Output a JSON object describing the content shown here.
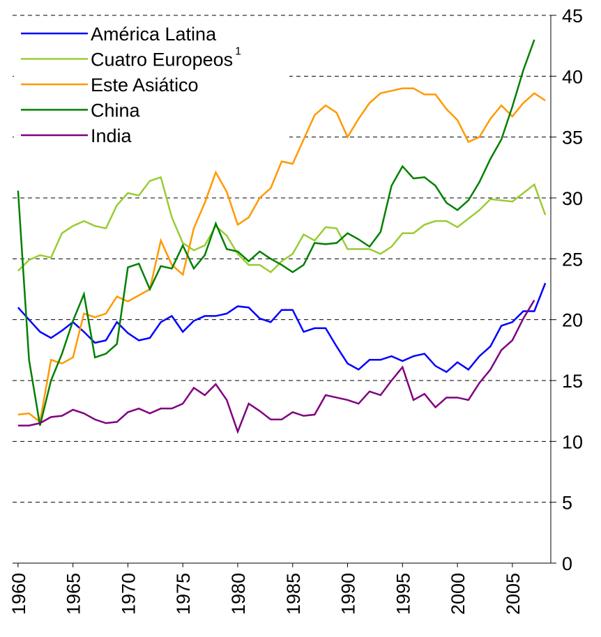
{
  "chart_data": {
    "type": "line",
    "x": [
      1960,
      1961,
      1962,
      1963,
      1964,
      1965,
      1966,
      1967,
      1968,
      1969,
      1970,
      1971,
      1972,
      1973,
      1974,
      1975,
      1976,
      1977,
      1978,
      1979,
      1980,
      1981,
      1982,
      1983,
      1984,
      1985,
      1986,
      1987,
      1988,
      1989,
      1990,
      1991,
      1992,
      1993,
      1994,
      1995,
      1996,
      1997,
      1998,
      1999,
      2000,
      2001,
      2002,
      2003,
      2004,
      2005,
      2006,
      2007,
      2008
    ],
    "series": [
      {
        "name": "América Latina",
        "color": "#0000ff",
        "values": [
          21.0,
          20.0,
          19.0,
          18.5,
          19.1,
          19.8,
          19.0,
          18.1,
          18.3,
          19.8,
          18.9,
          18.3,
          18.5,
          19.8,
          20.3,
          19.0,
          19.9,
          20.3,
          20.3,
          20.5,
          21.1,
          21.0,
          20.1,
          19.8,
          20.8,
          20.8,
          19.0,
          19.3,
          19.3,
          17.8,
          16.4,
          15.9,
          16.7,
          16.7,
          17.0,
          16.6,
          17.0,
          17.2,
          16.2,
          15.7,
          16.5,
          15.9,
          17.0,
          17.8,
          19.5,
          19.8,
          20.7,
          20.7,
          23.0
        ]
      },
      {
        "name": "Cuatro Europeos",
        "footnote_marker": "1",
        "color": "#99cc33",
        "values": [
          24.0,
          24.9,
          25.3,
          25.1,
          27.1,
          27.7,
          28.1,
          27.7,
          27.5,
          29.4,
          30.4,
          30.2,
          31.4,
          31.7,
          28.4,
          26.3,
          25.7,
          26.1,
          27.7,
          26.9,
          25.4,
          24.5,
          24.5,
          23.9,
          24.8,
          25.4,
          27.0,
          26.5,
          27.6,
          27.5,
          25.8,
          25.8,
          25.8,
          25.4,
          26.0,
          27.1,
          27.1,
          27.8,
          28.1,
          28.1,
          27.6,
          28.3,
          29.0,
          29.9,
          29.8,
          29.7,
          30.4,
          31.1,
          28.6
        ]
      },
      {
        "name": "Este Asiático",
        "color": "#ff9900",
        "values": [
          12.2,
          12.3,
          11.6,
          16.7,
          16.4,
          16.9,
          20.5,
          20.2,
          20.5,
          21.9,
          21.5,
          22.0,
          22.5,
          26.5,
          24.5,
          23.7,
          27.5,
          29.6,
          32.1,
          30.5,
          27.8,
          28.4,
          30.0,
          30.8,
          33.0,
          32.8,
          34.8,
          36.8,
          37.6,
          37.0,
          35.0,
          36.5,
          37.8,
          38.6,
          38.8,
          39.0,
          39.0,
          38.5,
          38.5,
          37.3,
          36.4,
          34.6,
          35.0,
          36.5,
          37.6,
          36.7,
          37.8,
          38.6,
          38.0
        ]
      },
      {
        "name": "China",
        "color": "#008000",
        "values": [
          30.6,
          16.7,
          11.3,
          15.0,
          17.2,
          19.9,
          22.1,
          16.9,
          17.2,
          18.0,
          24.3,
          24.6,
          22.5,
          24.4,
          24.2,
          26.1,
          24.2,
          25.3,
          27.9,
          25.8,
          25.6,
          24.8,
          25.6,
          25.0,
          24.5,
          23.9,
          24.5,
          26.3,
          26.2,
          26.3,
          27.1,
          26.6,
          26.0,
          27.2,
          31.0,
          32.6,
          31.6,
          31.7,
          31.0,
          29.6,
          29.0,
          29.8,
          31.3,
          33.2,
          34.8,
          37.5,
          40.5,
          43.0,
          null
        ]
      },
      {
        "name": "India",
        "color": "#800080",
        "values": [
          11.3,
          11.3,
          11.5,
          12.0,
          12.1,
          12.6,
          12.3,
          11.8,
          11.5,
          11.6,
          12.4,
          12.7,
          12.3,
          12.7,
          12.7,
          13.1,
          14.4,
          13.8,
          14.7,
          13.4,
          10.8,
          13.1,
          12.5,
          11.8,
          11.8,
          12.4,
          12.1,
          12.2,
          13.8,
          13.6,
          13.4,
          13.1,
          14.1,
          13.8,
          15.0,
          16.1,
          13.4,
          13.9,
          12.8,
          13.6,
          13.6,
          13.4,
          14.8,
          15.9,
          17.5,
          18.3,
          20.1,
          21.6,
          null
        ]
      }
    ],
    "xlim": [
      1959.5,
      2008.5
    ],
    "xticks": [
      1960,
      1965,
      1970,
      1975,
      1980,
      1985,
      1990,
      1995,
      2000,
      2005
    ],
    "ylim": [
      0,
      45
    ],
    "yticks": [
      0,
      5,
      10,
      15,
      20,
      25,
      30,
      35,
      40,
      45
    ],
    "grid": true,
    "legend": "upper left"
  }
}
